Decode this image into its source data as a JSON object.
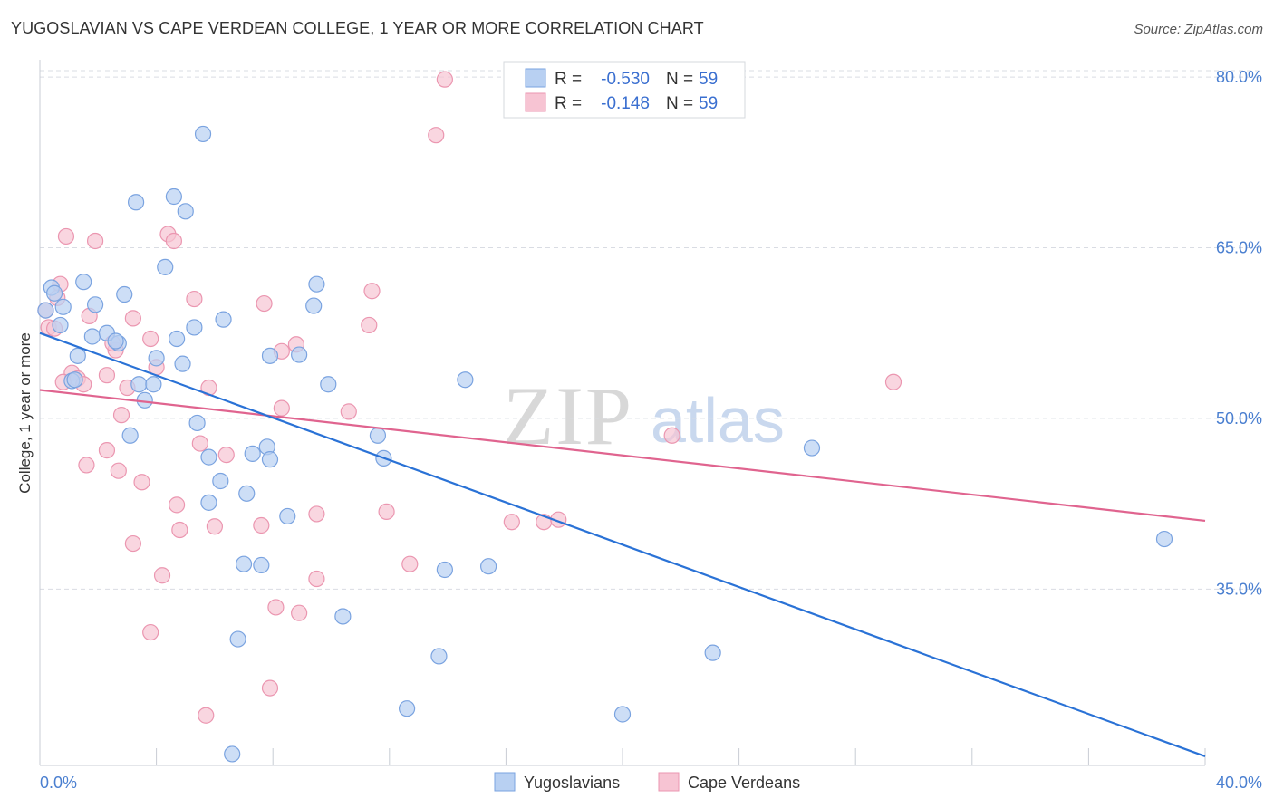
{
  "title": "YUGOSLAVIAN VS CAPE VERDEAN COLLEGE, 1 YEAR OR MORE CORRELATION CHART",
  "source": "Source: ZipAtlas.com",
  "watermark": {
    "zip": "ZIP",
    "atlas": "atlas"
  },
  "colors": {
    "blue_fill": "#b8d0f2",
    "blue_stroke": "#7aa3e0",
    "blue_line": "#2a72d6",
    "pink_fill": "#f7c4d3",
    "pink_stroke": "#eb96b0",
    "pink_line": "#e0648f",
    "grid": "#d9dce3",
    "axis_label": "#4a7fd0"
  },
  "legend_stats": [
    {
      "r_label": "R =",
      "r_value": "-0.530",
      "n_label": "N =",
      "n_value": "59"
    },
    {
      "r_label": "R =",
      "r_value": "-0.148",
      "n_label": "N =",
      "n_value": "59"
    }
  ],
  "chart_data": {
    "type": "scatter",
    "title": "YUGOSLAVIAN VS CAPE VERDEAN COLLEGE, 1 YEAR OR MORE CORRELATION CHART",
    "xlabel": "",
    "ylabel": "College, 1 year or more",
    "xlim": [
      0,
      40
    ],
    "ylim": [
      19.5,
      82
    ],
    "x_tick_labels": [
      "0.0%",
      "40.0%"
    ],
    "y_ticks": [
      35,
      50,
      65,
      80
    ],
    "y_tick_labels": [
      "35.0%",
      "50.0%",
      "65.0%",
      "80.0%"
    ],
    "grid": true,
    "legend_placement": "top-center",
    "series": [
      {
        "name": "Yugoslavians",
        "color": "#b8d0f2",
        "trend": {
          "x": [
            0,
            40
          ],
          "y": [
            57.5,
            20.3
          ]
        },
        "points": [
          [
            5.6,
            75.0
          ],
          [
            3.3,
            69.0
          ],
          [
            4.6,
            69.5
          ],
          [
            5.0,
            68.2
          ],
          [
            4.3,
            63.3
          ],
          [
            1.5,
            62.0
          ],
          [
            0.4,
            61.5
          ],
          [
            0.5,
            61.0
          ],
          [
            2.9,
            60.9
          ],
          [
            1.9,
            60.0
          ],
          [
            0.8,
            59.8
          ],
          [
            9.5,
            61.8
          ],
          [
            9.4,
            59.9
          ],
          [
            6.3,
            58.7
          ],
          [
            0.7,
            58.2
          ],
          [
            5.3,
            58.0
          ],
          [
            1.8,
            57.2
          ],
          [
            2.3,
            57.5
          ],
          [
            4.7,
            57.0
          ],
          [
            2.7,
            56.6
          ],
          [
            2.6,
            56.8
          ],
          [
            1.3,
            55.5
          ],
          [
            4.0,
            55.3
          ],
          [
            7.9,
            55.5
          ],
          [
            8.9,
            55.6
          ],
          [
            4.9,
            54.8
          ],
          [
            1.1,
            53.3
          ],
          [
            3.4,
            53.0
          ],
          [
            3.9,
            53.0
          ],
          [
            9.9,
            53.0
          ],
          [
            14.6,
            53.4
          ],
          [
            3.6,
            51.6
          ],
          [
            5.4,
            49.6
          ],
          [
            3.1,
            48.5
          ],
          [
            11.6,
            48.5
          ],
          [
            26.5,
            47.4
          ],
          [
            7.8,
            47.5
          ],
          [
            7.3,
            46.9
          ],
          [
            5.8,
            46.6
          ],
          [
            7.9,
            46.4
          ],
          [
            11.8,
            46.5
          ],
          [
            6.2,
            44.5
          ],
          [
            7.1,
            43.4
          ],
          [
            5.8,
            42.6
          ],
          [
            8.5,
            41.4
          ],
          [
            38.6,
            39.4
          ],
          [
            7.0,
            37.2
          ],
          [
            7.6,
            37.1
          ],
          [
            13.9,
            36.7
          ],
          [
            15.4,
            37.0
          ],
          [
            10.4,
            32.6
          ],
          [
            6.8,
            30.6
          ],
          [
            13.7,
            29.1
          ],
          [
            23.1,
            29.4
          ],
          [
            12.6,
            24.5
          ],
          [
            20.0,
            24.0
          ],
          [
            6.6,
            20.5
          ],
          [
            1.2,
            53.4
          ],
          [
            0.2,
            59.5
          ]
        ]
      },
      {
        "name": "Cape Verdeans",
        "color": "#f7c4d3",
        "trend": {
          "x": [
            0,
            40
          ],
          "y": [
            52.5,
            41.0
          ]
        },
        "points": [
          [
            13.9,
            79.8
          ],
          [
            13.6,
            74.9
          ],
          [
            0.9,
            66.0
          ],
          [
            1.9,
            65.6
          ],
          [
            4.4,
            66.2
          ],
          [
            4.6,
            65.6
          ],
          [
            0.7,
            61.8
          ],
          [
            0.6,
            60.6
          ],
          [
            5.3,
            60.5
          ],
          [
            7.7,
            60.1
          ],
          [
            11.4,
            61.2
          ],
          [
            0.2,
            59.5
          ],
          [
            1.7,
            59.0
          ],
          [
            3.2,
            58.8
          ],
          [
            0.3,
            58.0
          ],
          [
            11.3,
            58.2
          ],
          [
            3.8,
            57.0
          ],
          [
            2.6,
            56.0
          ],
          [
            8.8,
            56.5
          ],
          [
            8.3,
            55.9
          ],
          [
            2.5,
            56.6
          ],
          [
            4.0,
            54.5
          ],
          [
            1.1,
            54.0
          ],
          [
            1.3,
            53.5
          ],
          [
            2.3,
            53.8
          ],
          [
            1.5,
            53.0
          ],
          [
            0.8,
            53.2
          ],
          [
            3.0,
            52.7
          ],
          [
            5.8,
            52.7
          ],
          [
            29.3,
            53.2
          ],
          [
            8.3,
            50.9
          ],
          [
            10.6,
            50.6
          ],
          [
            2.8,
            50.3
          ],
          [
            5.5,
            47.8
          ],
          [
            21.7,
            48.5
          ],
          [
            2.3,
            47.2
          ],
          [
            6.4,
            46.8
          ],
          [
            1.6,
            45.9
          ],
          [
            2.7,
            45.4
          ],
          [
            3.5,
            44.4
          ],
          [
            4.7,
            42.4
          ],
          [
            9.5,
            41.6
          ],
          [
            11.9,
            41.8
          ],
          [
            16.2,
            40.9
          ],
          [
            17.3,
            40.9
          ],
          [
            17.8,
            41.1
          ],
          [
            6.0,
            40.5
          ],
          [
            7.6,
            40.6
          ],
          [
            4.8,
            40.2
          ],
          [
            3.2,
            39.0
          ],
          [
            12.7,
            37.2
          ],
          [
            4.2,
            36.2
          ],
          [
            9.5,
            35.9
          ],
          [
            8.1,
            33.4
          ],
          [
            8.9,
            32.9
          ],
          [
            3.8,
            31.2
          ],
          [
            7.9,
            26.3
          ],
          [
            5.7,
            23.9
          ],
          [
            0.5,
            57.9
          ]
        ]
      }
    ]
  }
}
